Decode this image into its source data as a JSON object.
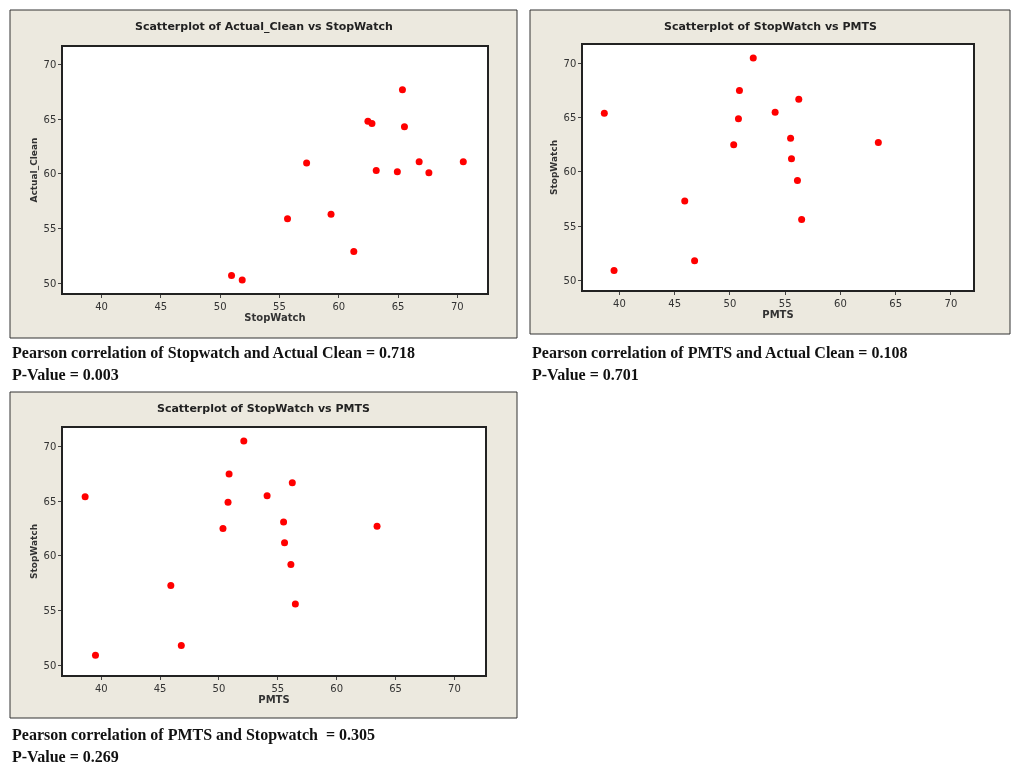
{
  "chart_data": [
    {
      "type": "scatter",
      "title": "Scatterplot of Actual_Clean vs StopWatch",
      "xlabel": "StopWatch",
      "ylabel": "Actual_Clean",
      "x": [
        50.96,
        51.86,
        55.68,
        57.29,
        59.35,
        61.27,
        62.46,
        62.8,
        63.16,
        64.94,
        65.37,
        65.54,
        66.78,
        67.6,
        70.5
      ],
      "series": [
        {
          "color": "#ff0000",
          "values": [
            50.7,
            50.3,
            55.9,
            61.0,
            56.3,
            52.9,
            64.8,
            64.6,
            60.3,
            60.2,
            67.7,
            64.3,
            61.1,
            60.1,
            61.1
          ]
        }
      ],
      "xlim": [
        36.75,
        72.5
      ],
      "ylim": [
        49.1,
        71.6
      ],
      "xticks": [
        40,
        45,
        50,
        55,
        60,
        65,
        70
      ],
      "yticks": [
        50,
        55,
        60,
        65,
        70
      ],
      "marker": "circle",
      "annotations": [
        "Pearson correlation of Stopwatch and Actual Clean = 0.718",
        "P-Value = 0.003"
      ]
    },
    {
      "type": "scatter",
      "title": "Scatterplot of StopWatch vs PMTS",
      "xlabel": "PMTS",
      "ylabel": "StopWatch",
      "x": [
        38.63,
        39.51,
        45.91,
        46.8,
        50.34,
        50.77,
        50.86,
        52.11,
        54.09,
        55.49,
        55.57,
        56.11,
        56.23,
        56.49,
        63.43
      ],
      "series": [
        {
          "color": "#ff0000",
          "values": [
            65.4,
            50.9,
            57.3,
            51.8,
            62.5,
            64.9,
            67.5,
            70.5,
            65.5,
            63.1,
            61.2,
            59.2,
            66.7,
            55.6,
            62.7
          ]
        }
      ],
      "xlim": [
        36.7,
        72.0
      ],
      "ylim": [
        49.1,
        71.7
      ],
      "xticks": [
        40,
        45,
        50,
        55,
        60,
        65,
        70
      ],
      "yticks": [
        50,
        55,
        60,
        65,
        70
      ],
      "marker": "circle",
      "annotations": [
        "Pearson correlation of PMTS and Actual Clean = 0.108",
        "P-Value = 0.701"
      ]
    },
    {
      "type": "scatter",
      "title": "Scatterplot of StopWatch vs PMTS",
      "xlabel": "PMTS",
      "ylabel": "StopWatch",
      "x": [
        38.63,
        39.51,
        45.91,
        46.8,
        50.34,
        50.77,
        50.86,
        52.11,
        54.09,
        55.49,
        55.57,
        56.11,
        56.23,
        56.49,
        63.43
      ],
      "series": [
        {
          "color": "#ff0000",
          "values": [
            65.4,
            50.9,
            57.3,
            51.8,
            62.5,
            64.9,
            67.5,
            70.5,
            65.5,
            63.1,
            61.2,
            59.2,
            66.7,
            55.6,
            62.7
          ]
        }
      ],
      "xlim": [
        36.75,
        72.6
      ],
      "ylim": [
        49.1,
        71.7
      ],
      "xticks": [
        40,
        45,
        50,
        55,
        60,
        65,
        70
      ],
      "yticks": [
        50,
        55,
        60,
        65,
        70
      ],
      "marker": "circle",
      "annotations": [
        "Pearson correlation of PMTS and Stopwatch  = 0.305",
        "P-Value = 0.269"
      ]
    }
  ]
}
